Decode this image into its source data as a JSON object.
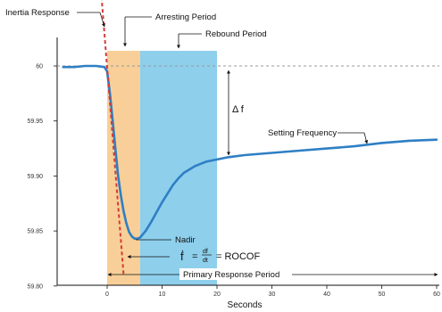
{
  "chart_data": {
    "type": "line",
    "xlabel": "Seconds",
    "ylabel": "",
    "xlim": [
      -9,
      60
    ],
    "ylim": [
      59.8,
      60.0
    ],
    "x_ticks": [
      "0",
      "10",
      "20",
      "30",
      "40",
      "50",
      "60"
    ],
    "y_ticks": [
      "59.80",
      "59.85",
      "59.90",
      "59.95",
      "60"
    ],
    "regions": [
      {
        "label": "Arresting Period",
        "x_start": 0,
        "x_end": 6,
        "color": "#f8cf98"
      },
      {
        "label": "Rebound Period",
        "x_start": 6,
        "x_end": 20,
        "color": "#8ecfec"
      }
    ],
    "series": [
      {
        "color": "#2e7fc4",
        "x": [
          -8,
          -6,
          -4,
          -2,
          -0.5,
          0,
          0.5,
          1,
          1.5,
          2,
          2.5,
          3,
          3.5,
          4,
          4.5,
          5,
          5.5,
          6,
          7,
          8,
          9,
          10,
          11,
          12,
          13,
          14,
          15,
          16,
          18,
          20,
          22,
          25,
          30,
          35,
          40,
          45,
          50,
          55,
          60
        ],
        "y": [
          59.999,
          59.999,
          60.0,
          60.0,
          59.999,
          59.995,
          59.975,
          59.95,
          59.925,
          59.9,
          59.882,
          59.868,
          59.857,
          59.849,
          59.845,
          59.843,
          59.843,
          59.844,
          59.85,
          59.858,
          59.867,
          59.876,
          59.884,
          59.892,
          59.898,
          59.903,
          59.906,
          59.909,
          59.913,
          59.915,
          59.917,
          59.919,
          59.921,
          59.923,
          59.925,
          59.927,
          59.93,
          59.932,
          59.933
        ]
      }
    ],
    "reference_lines": [
      {
        "type": "horizontal",
        "y": 60.0,
        "style": "dashed"
      },
      {
        "type": "tangent",
        "label": "RoCoF tangent",
        "x": [
          -1.3,
          3.0
        ],
        "y": [
          60.08,
          59.81
        ],
        "color": "#d63a3a",
        "style": "dashed"
      }
    ],
    "annotations": {
      "inertia_response": "Inertia Response",
      "arresting_period": "Arresting Period",
      "rebound_period": "Rebound Period",
      "delta_f": "Δ f",
      "setting_frequency": "Setting Frequency",
      "nadir": "Nadir",
      "rocof_lhs": "ḟ",
      "rocof_eq": "=",
      "rocof_num": "df",
      "rocof_den": "dt",
      "rocof_rhs": "= ROCOF",
      "primary_response": "Primary Response Period"
    }
  }
}
